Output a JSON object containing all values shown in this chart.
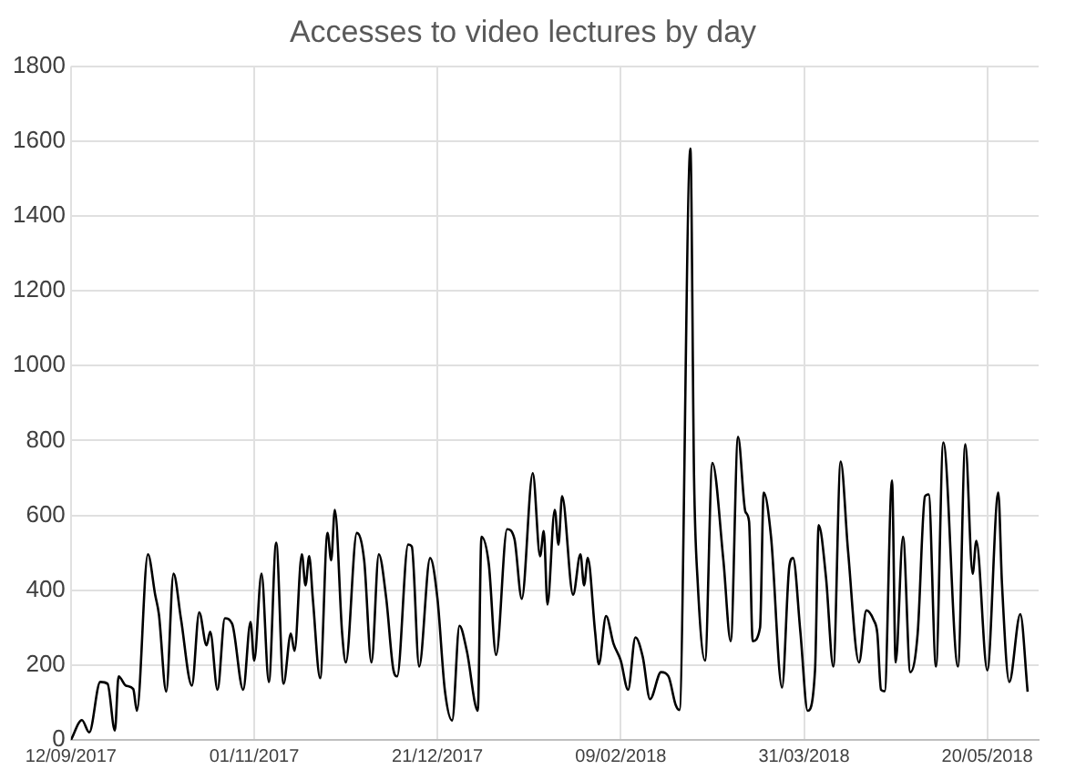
{
  "chart_data": {
    "type": "line",
    "title": "Accesses to video lectures by day",
    "grid": true,
    "legend": false,
    "marker": "none",
    "line_style": "solid",
    "xlim": [
      "2017-09-12",
      "2018-06-03"
    ],
    "xticks": [
      {
        "value": "2017-09-12",
        "label": "12/09/2017"
      },
      {
        "value": "2017-11-01",
        "label": "01/11/2017"
      },
      {
        "value": "2017-12-21",
        "label": "21/12/2017"
      },
      {
        "value": "2018-02-09",
        "label": "09/02/2018"
      },
      {
        "value": "2018-03-31",
        "label": "31/03/2018"
      },
      {
        "value": "2018-05-20",
        "label": "20/05/2018"
      }
    ],
    "ylim": [
      0,
      1800
    ],
    "yticks": [
      0,
      200,
      400,
      600,
      800,
      1000,
      1200,
      1400,
      1600,
      1800
    ],
    "x": [
      "2017-09-12",
      "2017-09-15",
      "2017-09-17",
      "2017-09-20",
      "2017-09-22",
      "2017-09-24",
      "2017-09-25",
      "2017-09-27",
      "2017-09-29",
      "2017-09-30",
      "2017-10-03",
      "2017-10-05",
      "2017-10-06",
      "2017-10-08",
      "2017-10-10",
      "2017-10-12",
      "2017-10-15",
      "2017-10-17",
      "2017-10-19",
      "2017-10-20",
      "2017-10-22",
      "2017-10-24",
      "2017-10-26",
      "2017-10-29",
      "2017-10-31",
      "2017-11-01",
      "2017-11-03",
      "2017-11-05",
      "2017-11-07",
      "2017-11-09",
      "2017-11-11",
      "2017-11-12",
      "2017-11-14",
      "2017-11-15",
      "2017-11-16",
      "2017-11-17",
      "2017-11-19",
      "2017-11-21",
      "2017-11-22",
      "2017-11-23",
      "2017-11-25",
      "2017-11-26",
      "2017-11-29",
      "2017-12-01",
      "2017-12-03",
      "2017-12-05",
      "2017-12-07",
      "2017-12-09",
      "2017-12-10",
      "2017-12-13",
      "2017-12-14",
      "2017-12-16",
      "2017-12-19",
      "2017-12-21",
      "2017-12-23",
      "2017-12-25",
      "2017-12-27",
      "2017-12-29",
      "2018-01-01",
      "2018-01-02",
      "2018-01-04",
      "2018-01-06",
      "2018-01-09",
      "2018-01-11",
      "2018-01-13",
      "2018-01-16",
      "2018-01-18",
      "2018-01-19",
      "2018-01-20",
      "2018-01-22",
      "2018-01-23",
      "2018-01-24",
      "2018-01-27",
      "2018-01-29",
      "2018-01-30",
      "2018-01-31",
      "2018-02-02",
      "2018-02-03",
      "2018-02-05",
      "2018-02-07",
      "2018-02-09",
      "2018-02-11",
      "2018-02-13",
      "2018-02-15",
      "2018-02-17",
      "2018-02-20",
      "2018-02-22",
      "2018-02-24",
      "2018-02-25",
      "2018-02-28",
      "2018-03-01",
      "2018-03-02",
      "2018-03-04",
      "2018-03-06",
      "2018-03-09",
      "2018-03-11",
      "2018-03-13",
      "2018-03-15",
      "2018-03-16",
      "2018-03-17",
      "2018-03-19",
      "2018-03-20",
      "2018-03-22",
      "2018-03-25",
      "2018-03-27",
      "2018-03-28",
      "2018-03-30",
      "2018-04-01",
      "2018-04-03",
      "2018-04-04",
      "2018-04-06",
      "2018-04-08",
      "2018-04-10",
      "2018-04-12",
      "2018-04-15",
      "2018-04-17",
      "2018-04-19",
      "2018-04-20",
      "2018-04-21",
      "2018-04-22",
      "2018-04-24",
      "2018-04-25",
      "2018-04-27",
      "2018-04-29",
      "2018-05-01",
      "2018-05-03",
      "2018-05-04",
      "2018-05-06",
      "2018-05-08",
      "2018-05-12",
      "2018-05-14",
      "2018-05-16",
      "2018-05-17",
      "2018-05-20",
      "2018-05-23",
      "2018-05-24",
      "2018-05-26",
      "2018-05-29",
      "2018-05-31"
    ],
    "series": [
      {
        "color": "#000000",
        "values": [
          0,
          53,
          20,
          155,
          150,
          25,
          170,
          145,
          136,
          78,
          496,
          387,
          336,
          129,
          444,
          325,
          145,
          341,
          253,
          289,
          134,
          325,
          310,
          134,
          315,
          212,
          444,
          155,
          527,
          150,
          284,
          238,
          496,
          413,
          491,
          377,
          165,
          553,
          480,
          615,
          284,
          207,
          553,
          480,
          207,
          496,
          380,
          186,
          170,
          522,
          517,
          196,
          486,
          377,
          134,
          52,
          305,
          238,
          78,
          543,
          470,
          227,
          563,
          537,
          377,
          713,
          491,
          558,
          362,
          615,
          522,
          651,
          388,
          496,
          413,
          486,
          289,
          202,
          331,
          258,
          212,
          134,
          274,
          222,
          109,
          181,
          170,
          93,
          80,
          1580,
          700,
          420,
          212,
          740,
          480,
          264,
          810,
          610,
          584,
          264,
          300,
          661,
          543,
          140,
          465,
          486,
          289,
          78,
          186,
          574,
          434,
          196,
          744,
          506,
          207,
          346,
          320,
          284,
          134,
          130,
          693,
          207,
          543,
          181,
          284,
          651,
          656,
          196,
          795,
          196,
          790,
          444,
          532,
          186,
          661,
          418,
          155,
          336,
          129
        ]
      }
    ]
  }
}
